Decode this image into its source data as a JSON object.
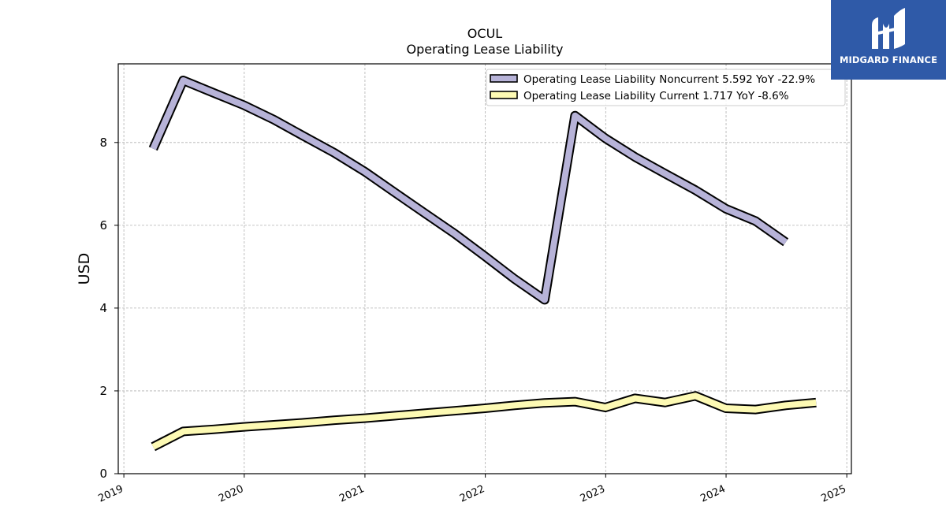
{
  "chart_data": {
    "type": "line",
    "title": "OCUL",
    "subtitle": "Operating Lease Liability",
    "ylabel": "USD",
    "xlabel": "",
    "xlim": [
      "2018-12-15",
      "2025-01-15"
    ],
    "ylim": [
      0,
      9.9
    ],
    "x_ticks": [
      "2019",
      "2020",
      "2021",
      "2022",
      "2023",
      "2024",
      "2025"
    ],
    "y_ticks": [
      0,
      2,
      4,
      6,
      8
    ],
    "grid": true,
    "legend_position": "top-right",
    "series": [
      {
        "name": "Operating Lease Liability Noncurrent",
        "legend_label": "Operating Lease Liability Noncurrent  5.592 YoY -22.9%",
        "color": "#b7b3d8",
        "x": [
          "2019-03-31",
          "2019-06-30",
          "2019-09-30",
          "2019-12-31",
          "2020-03-31",
          "2020-06-30",
          "2020-09-30",
          "2020-12-31",
          "2021-03-31",
          "2021-06-30",
          "2021-09-30",
          "2021-12-31",
          "2022-03-31",
          "2022-06-30",
          "2022-09-30",
          "2022-12-31",
          "2023-03-31",
          "2023-06-30",
          "2023-09-30",
          "2023-12-31",
          "2024-03-31",
          "2024-06-30",
          "2024-09-30"
        ],
        "values": [
          7.85,
          9.5,
          9.2,
          8.9,
          8.55,
          8.15,
          7.75,
          7.3,
          6.8,
          6.3,
          5.8,
          5.25,
          4.7,
          4.2,
          8.65,
          8.1,
          7.65,
          7.25,
          6.85,
          6.4,
          6.1,
          5.592,
          null
        ]
      },
      {
        "name": "Operating Lease Liability Current",
        "legend_label": "Operating Lease Liability Current  1.717 YoY -8.6%",
        "color": "#fdfab4",
        "x": [
          "2019-03-31",
          "2019-06-30",
          "2019-09-30",
          "2019-12-31",
          "2020-03-31",
          "2020-06-30",
          "2020-09-30",
          "2020-12-31",
          "2021-03-31",
          "2021-06-30",
          "2021-09-30",
          "2021-12-31",
          "2022-03-31",
          "2022-06-30",
          "2022-09-30",
          "2022-12-31",
          "2023-03-31",
          "2023-06-30",
          "2023-09-30",
          "2023-12-31",
          "2024-03-31",
          "2024-06-30",
          "2024-09-30"
        ],
        "values": [
          0.65,
          1.02,
          1.07,
          1.13,
          1.18,
          1.23,
          1.29,
          1.34,
          1.4,
          1.46,
          1.52,
          1.58,
          1.65,
          1.71,
          1.74,
          1.6,
          1.82,
          1.72,
          1.88,
          1.58,
          1.55,
          1.65,
          1.717
        ]
      }
    ]
  },
  "watermark": {
    "text": "MIDGARD FINANCE",
    "background": "#2f5aa8"
  }
}
